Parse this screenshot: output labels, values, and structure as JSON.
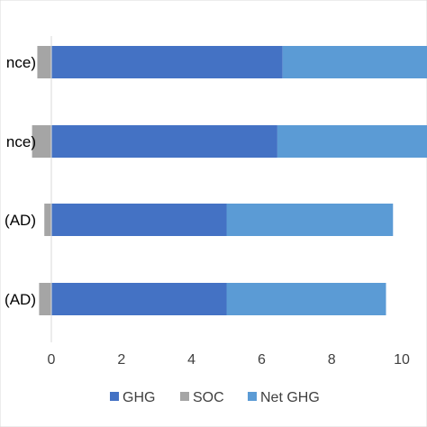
{
  "chart_data": {
    "type": "bar",
    "orientation": "horizontal",
    "stacked": true,
    "categories": [
      "nce)",
      "nce)",
      "(AD)",
      "(AD)"
    ],
    "series": [
      {
        "name": "GHG",
        "color": "#4472C4",
        "values": [
          6.6,
          6.45,
          5.0,
          5.0
        ]
      },
      {
        "name": "SOC",
        "color": "#A5A5A5",
        "values": [
          -0.4,
          -0.55,
          -0.2,
          -0.35
        ]
      },
      {
        "name": "Net GHG",
        "color": "#5B9BD5",
        "values": [
          4.3,
          4.35,
          4.75,
          4.55
        ]
      }
    ],
    "xticks": [
      "0",
      "2",
      "4",
      "6",
      "8",
      "10"
    ],
    "xlim": [
      0,
      11
    ],
    "grid": false,
    "legend_position": "bottom"
  }
}
